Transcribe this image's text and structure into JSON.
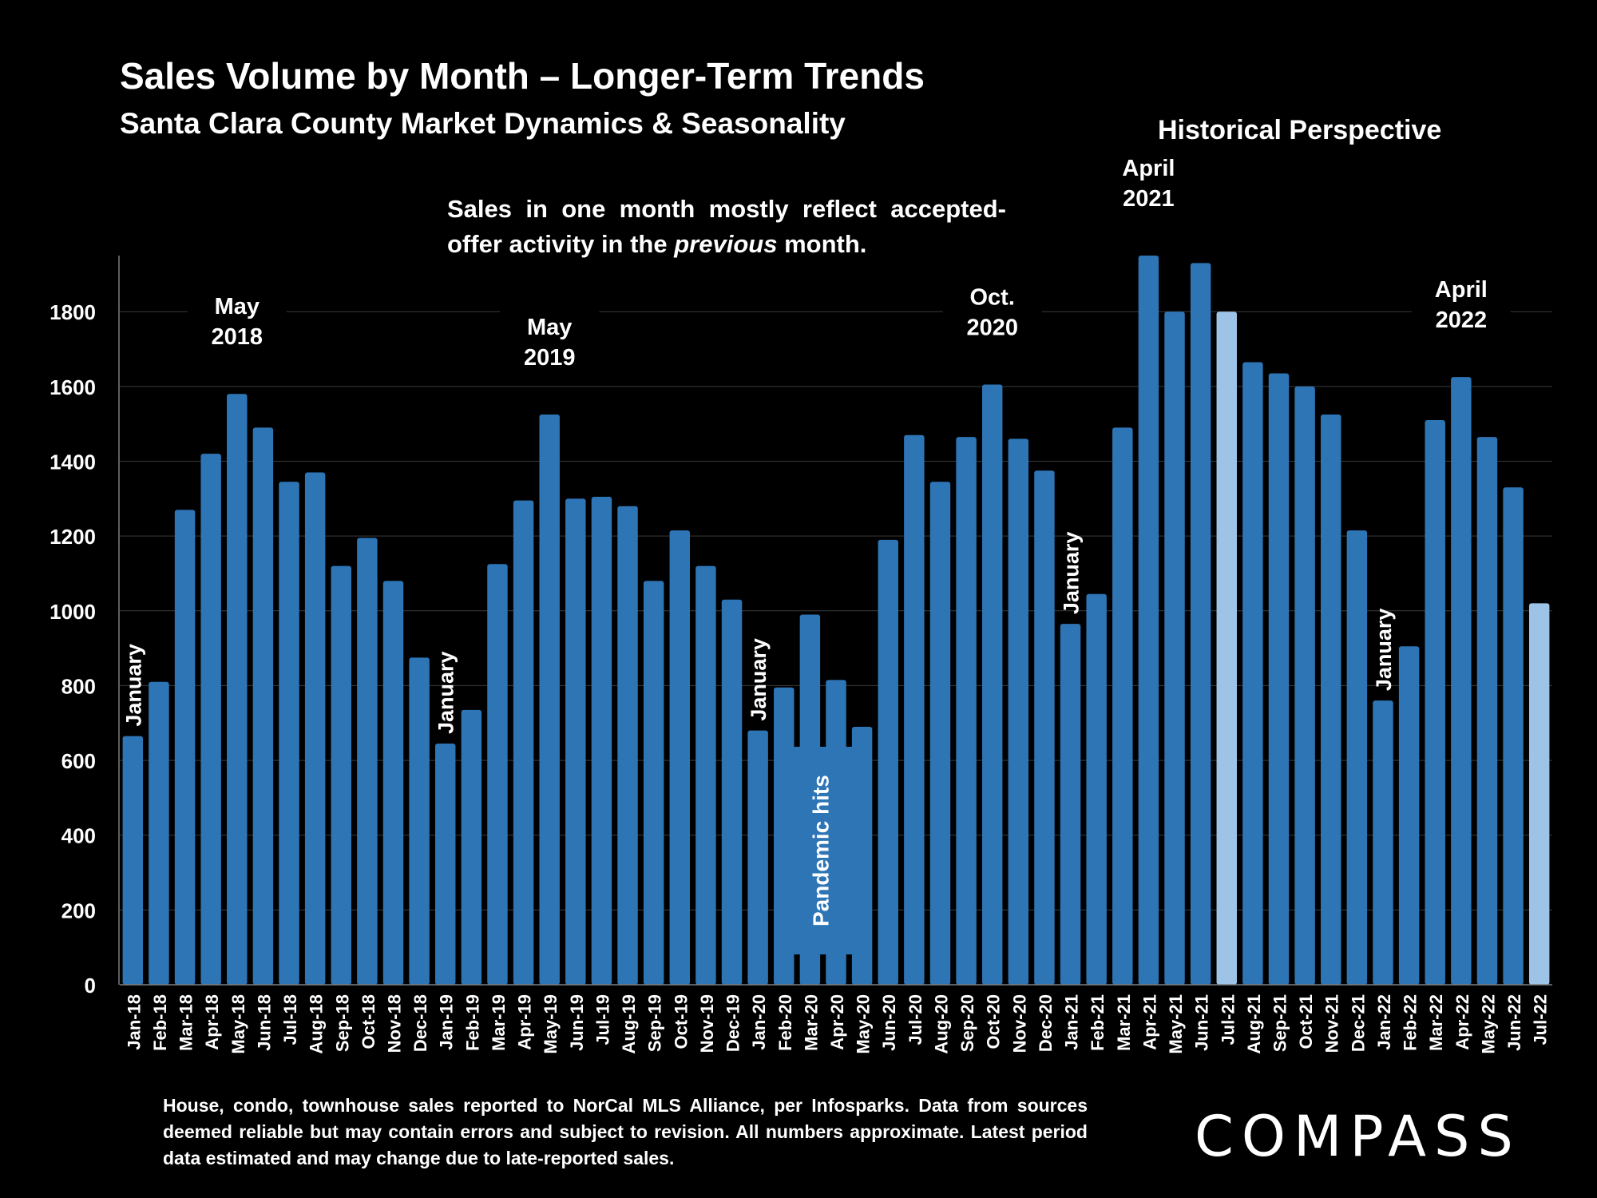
{
  "header": {
    "title": "Sales Volume by Month – Longer-Term Trends",
    "subtitle": "Santa Clara County Market Dynamics & Seasonality",
    "side_heading": "Historical Perspective"
  },
  "note": {
    "before": "Sales in one month mostly reflect accepted-offer activity in the ",
    "emphasis": "previous",
    "after": " month."
  },
  "footnote": "House, condo, townhouse sales reported to NorCal MLS Alliance, per Infosparks. Data from sources deemed reliable but may contain errors and subject to revision. All numbers approximate. Latest period data estimated and may change due to late-reported sales.",
  "logo": "COMPASS",
  "colors": {
    "bar": "#2E75B6",
    "bar_highlight": "#9DC3E6",
    "gridline": "#3a3a3a",
    "background": "#000000"
  },
  "chart_data": {
    "type": "bar",
    "title": "Sales Volume by Month – Longer-Term Trends",
    "xlabel": "",
    "ylabel": "",
    "ylim": [
      0,
      1950
    ],
    "yticks": [
      0,
      200,
      400,
      600,
      800,
      1000,
      1200,
      1400,
      1600,
      1800
    ],
    "grid": true,
    "legend": "none",
    "categories": [
      "Jan-18",
      "Feb-18",
      "Mar-18",
      "Apr-18",
      "May-18",
      "Jun-18",
      "Jul-18",
      "Aug-18",
      "Sep-18",
      "Oct-18",
      "Nov-18",
      "Dec-18",
      "Jan-19",
      "Feb-19",
      "Mar-19",
      "Apr-19",
      "May-19",
      "Jun-19",
      "Jul-19",
      "Aug-19",
      "Sep-19",
      "Oct-19",
      "Nov-19",
      "Dec-19",
      "Jan-20",
      "Feb-20",
      "Mar-20",
      "Apr-20",
      "May-20",
      "Jun-20",
      "Jul-20",
      "Aug-20",
      "Sep-20",
      "Oct-20",
      "Nov-20",
      "Dec-20",
      "Jan-21",
      "Feb-21",
      "Mar-21",
      "Apr-21",
      "May-21",
      "Jun-21",
      "Jul-21",
      "Aug-21",
      "Sep-21",
      "Oct-21",
      "Nov-21",
      "Dec-21",
      "Jan-22",
      "Feb-22",
      "Mar-22",
      "Apr-22",
      "May-22",
      "Jun-22",
      "Jul-22"
    ],
    "values": [
      665,
      810,
      1270,
      1420,
      1580,
      1490,
      1345,
      1370,
      1120,
      1195,
      1080,
      875,
      645,
      735,
      1125,
      1295,
      1525,
      1300,
      1305,
      1280,
      1080,
      1215,
      1120,
      1030,
      680,
      795,
      990,
      815,
      690,
      1190,
      1470,
      1345,
      1465,
      1605,
      1460,
      1375,
      965,
      1045,
      1490,
      1950,
      1800,
      1930,
      1800,
      1665,
      1635,
      1600,
      1525,
      1215,
      760,
      905,
      1510,
      1625,
      1465,
      1330,
      1020
    ],
    "highlighted": [
      "Jul-21",
      "Jul-22"
    ],
    "annotations": [
      {
        "text": "January",
        "category": "Jan-18",
        "orientation": "vertical"
      },
      {
        "text": "May 2018",
        "category": "May-18",
        "orientation": "horizontal"
      },
      {
        "text": "January",
        "category": "Jan-19",
        "orientation": "vertical"
      },
      {
        "text": "May 2019",
        "category": "May-19",
        "orientation": "horizontal"
      },
      {
        "text": "January",
        "category": "Jan-20",
        "orientation": "vertical"
      },
      {
        "text": "Pandemic hits",
        "category": "Mar-20",
        "orientation": "vertical"
      },
      {
        "text": "Oct. 2020",
        "category": "Oct-20",
        "orientation": "horizontal"
      },
      {
        "text": "January",
        "category": "Jan-21",
        "orientation": "vertical"
      },
      {
        "text": "April 2021",
        "category": "Apr-21",
        "orientation": "horizontal"
      },
      {
        "text": "January",
        "category": "Jan-22",
        "orientation": "vertical"
      },
      {
        "text": "April 2022",
        "category": "Apr-22",
        "orientation": "horizontal"
      }
    ]
  }
}
